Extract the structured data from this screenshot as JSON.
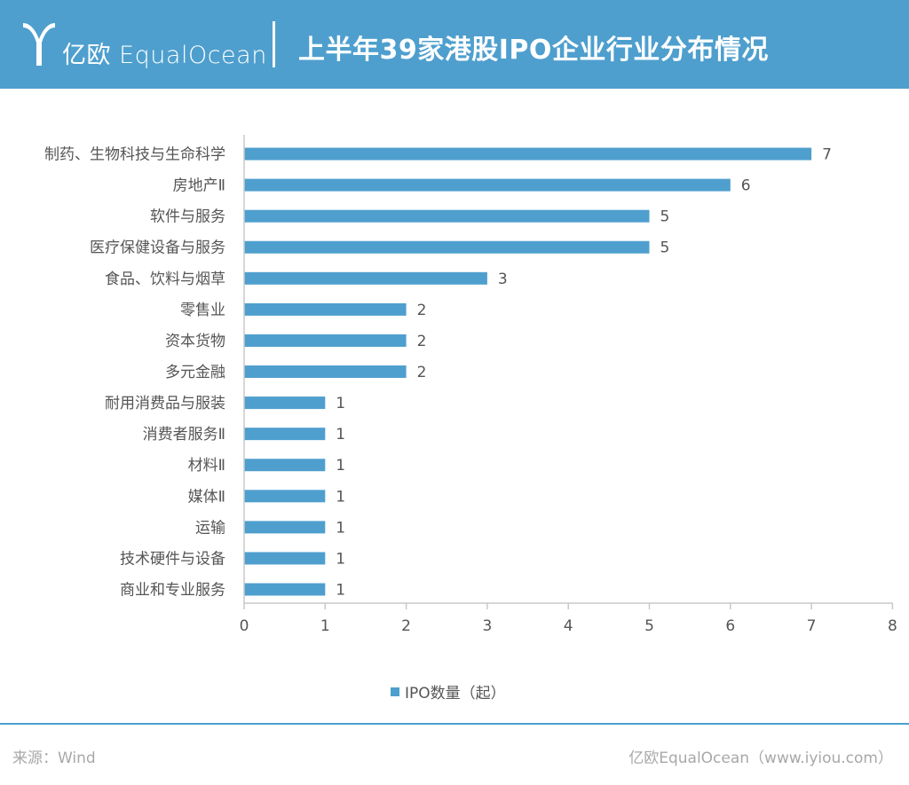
{
  "header": {
    "logo_text": "亿欧 EqualOcean",
    "title": "上半年39家港股IPO企业行业分布情况"
  },
  "colors": {
    "header_bg": "#4e9fce",
    "bar": "#4e9fce",
    "axis": "#c8c8c8",
    "text": "#555555"
  },
  "chart_data": {
    "type": "bar",
    "orientation": "horizontal",
    "categories": [
      "制药、生物科技与生命科学",
      "房地产Ⅱ",
      "软件与服务",
      "医疗保健设备与服务",
      "食品、饮料与烟草",
      "零售业",
      "资本货物",
      "多元金融",
      "耐用消费品与服装",
      "消费者服务Ⅱ",
      "材料Ⅱ",
      "媒体Ⅱ",
      "运输",
      "技术硬件与设备",
      "商业和专业服务"
    ],
    "series": [
      {
        "name": "IPO数量（起）",
        "values": [
          7,
          6,
          5,
          5,
          3,
          2,
          2,
          2,
          1,
          1,
          1,
          1,
          1,
          1,
          1
        ]
      }
    ],
    "xlim": [
      0,
      8
    ],
    "xticks": [
      "0",
      "1",
      "2",
      "3",
      "4",
      "5",
      "6",
      "7",
      "8"
    ],
    "data_labels": true,
    "grid": false,
    "legend_position": "bottom-center"
  },
  "legend": {
    "label": "IPO数量（起）"
  },
  "footer": {
    "source": "来源：Wind",
    "brand": "亿欧EqualOcean（www.iyiou.com）"
  }
}
